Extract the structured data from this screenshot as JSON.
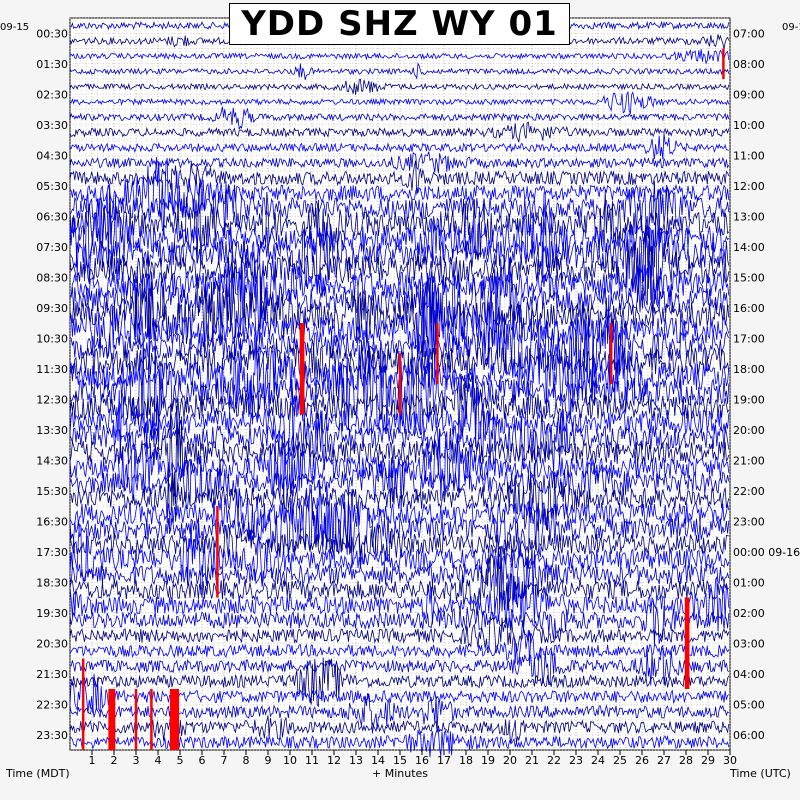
{
  "chart_data": {
    "type": "line",
    "title": "YDD SHZ WY 01",
    "date_left": "09-15",
    "date_right_top": "09-1",
    "left_axis_label": "Time (MDT)",
    "right_axis_label": "Time (UTC)",
    "x_axis_label": "+ Minutes",
    "x_range": [
      0,
      30
    ],
    "x_ticks": [
      "1",
      "2",
      "3",
      "4",
      "5",
      "6",
      "7",
      "8",
      "9",
      "10",
      "11",
      "12",
      "13",
      "14",
      "15",
      "16",
      "17",
      "18",
      "19",
      "20",
      "21",
      "22",
      "23",
      "24",
      "25",
      "26",
      "27",
      "28",
      "29",
      "30"
    ],
    "left_ticks": [
      "00:30",
      "01:30",
      "02:30",
      "03:30",
      "04:30",
      "05:30",
      "06:30",
      "07:30",
      "08:30",
      "09:30",
      "10:30",
      "11:30",
      "12:30",
      "13:30",
      "14:30",
      "15:30",
      "16:30",
      "17:30",
      "18:30",
      "19:30",
      "20:30",
      "21:30",
      "22:30",
      "23:30"
    ],
    "right_ticks": [
      "07:00",
      "08:00",
      "09:00",
      "10:00",
      "11:00",
      "12:00",
      "13:00",
      "14:00",
      "15:00",
      "16:00",
      "17:00",
      "18:00",
      "19:00",
      "20:00",
      "21:00",
      "22:00",
      "23:00",
      "00:00 09-16",
      "01:00",
      "02:00",
      "03:00",
      "04:00",
      "05:00",
      "06:00"
    ],
    "traces_per_hour": 2,
    "trace_colors": [
      "#0000cc",
      "#000080",
      "#0000ff"
    ],
    "clip_color": "#ff0000",
    "row_amplitude": [
      0.25,
      0.25,
      0.2,
      0.2,
      0.2,
      0.2,
      0.25,
      0.3,
      0.3,
      0.35,
      0.5,
      0.6,
      0.8,
      0.9,
      0.95,
      1,
      1,
      1,
      1,
      1,
      1,
      1,
      1,
      1,
      1,
      0.95,
      0.9,
      0.9,
      0.85,
      0.8,
      0.8,
      0.8,
      0.8,
      0.8,
      0.75,
      0.75,
      0.75,
      0.7,
      0.65,
      0.6,
      0.5,
      0.45,
      0.45,
      0.45,
      0.45,
      0.45,
      0.45,
      0.45
    ]
  }
}
